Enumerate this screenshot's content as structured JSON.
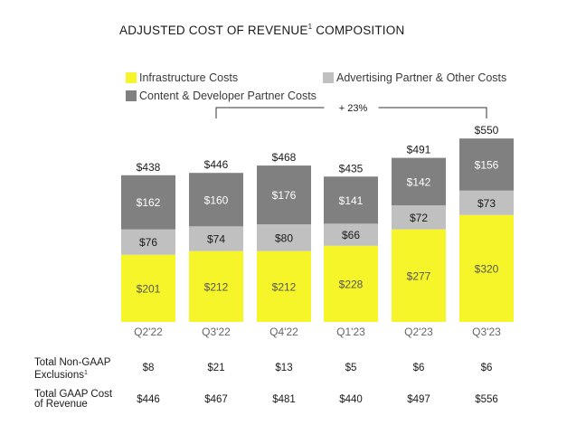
{
  "title": "ADJUSTED COST OF REVENUE",
  "title_sup": "1",
  "title_suffix": " COMPOSITION",
  "legend": [
    {
      "label": "Infrastructure Costs",
      "color": "#f5f52a"
    },
    {
      "label": "Advertising Partner & Other Costs",
      "color": "#c0c0c0"
    },
    {
      "label": "Content & Developer Partner Costs",
      "color": "#808080"
    }
  ],
  "growth_label": "+ 23%",
  "chart_data": {
    "type": "bar",
    "stacked": true,
    "title": "ADJUSTED COST OF REVENUE COMPOSITION",
    "categories": [
      "Q2'22",
      "Q3'22",
      "Q4'22",
      "Q1'23",
      "Q2'23",
      "Q3'23"
    ],
    "series": [
      {
        "name": "Infrastructure Costs",
        "color": "#f5f52a",
        "values": [
          201,
          212,
          212,
          228,
          277,
          320
        ],
        "labels": [
          "$201",
          "$212",
          "$212",
          "$228",
          "$277",
          "$320"
        ]
      },
      {
        "name": "Advertising Partner & Other Costs",
        "color": "#c0c0c0",
        "values": [
          76,
          74,
          80,
          66,
          72,
          73
        ],
        "labels": [
          "$76",
          "$74",
          "$80",
          "$66",
          "$72",
          "$73"
        ]
      },
      {
        "name": "Content & Developer Partner Costs",
        "color": "#808080",
        "values": [
          162,
          160,
          176,
          141,
          142,
          156
        ],
        "labels": [
          "$162",
          "$160",
          "$176",
          "$141",
          "$142",
          "$156"
        ]
      }
    ],
    "totals": [
      "$438",
      "$446",
      "$468",
      "$435",
      "$491",
      "$550"
    ],
    "growth": {
      "from": "Q3'22",
      "to": "Q3'23",
      "label": "+ 23%"
    }
  },
  "table": {
    "rows": [
      {
        "label_line1": "Total Non-GAAP",
        "label_line2": "Exclusions",
        "label_sup": "1",
        "values": [
          "$8",
          "$21",
          "$13",
          "$5",
          "$6",
          "$6"
        ]
      },
      {
        "label_line1": "Total GAAP Cost",
        "label_line2": "of Revenue",
        "label_sup": "",
        "values": [
          "$446",
          "$467",
          "$481",
          "$440",
          "$497",
          "$556"
        ]
      }
    ]
  }
}
